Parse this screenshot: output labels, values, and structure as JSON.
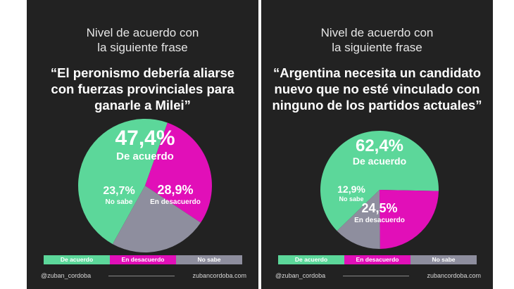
{
  "colors": {
    "acuerdo": "#5cd79a",
    "desacuerdo": "#e10fb8",
    "nosabe": "#8e8e9e"
  },
  "left": {
    "subtitle": [
      "Nivel de acuerdo con",
      "la siguiente frase"
    ],
    "quote": [
      "“El peronismo debería aliarse",
      "con fuerzas provinciales para",
      "ganarle a Milei”"
    ],
    "legend": [
      "De acuerdo",
      "En desacuerdo",
      "No sabe"
    ],
    "handle": "@zuban_cordoba",
    "website": "zubancordoba.com"
  },
  "right": {
    "subtitle": [
      "Nivel de acuerdo con",
      "la siguiente frase"
    ],
    "quote": [
      "“Argentina necesita un candidato",
      "nuevo que no esté vinculado con",
      "ninguno de los partidos actuales”"
    ],
    "legend": [
      "De acuerdo",
      "En desacuerdo",
      "No sabe"
    ],
    "handle": "@zuban_cordoba",
    "website": "zubancordoba.com"
  },
  "chart_data": [
    {
      "type": "pie",
      "title": "“El peronismo debería aliarse con fuerzas provinciales para ganarle a Milei”",
      "slices": [
        {
          "name": "De acuerdo",
          "value": 47.4,
          "value_label": "47,4%"
        },
        {
          "name": "En desacuerdo",
          "value": 28.9,
          "value_label": "28,9%"
        },
        {
          "name": "No sabe",
          "value": 23.7,
          "value_label": "23,7%"
        }
      ]
    },
    {
      "type": "pie",
      "title": "“Argentina necesita un candidato nuevo que no esté vinculado con ninguno de los partidos actuales”",
      "slices": [
        {
          "name": "De acuerdo",
          "value": 62.4,
          "value_label": "62,4%"
        },
        {
          "name": "En desacuerdo",
          "value": 24.5,
          "value_label": "24,5%"
        },
        {
          "name": "No sabe",
          "value": 12.9,
          "value_label": "12,9%"
        }
      ]
    }
  ]
}
